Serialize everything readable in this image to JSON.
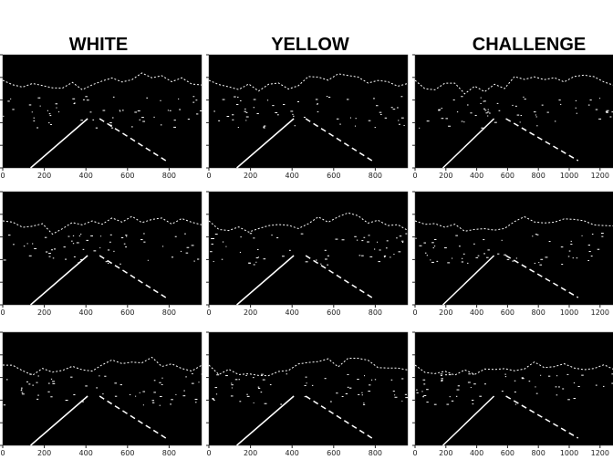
{
  "columns": [
    {
      "title": "WHITE",
      "xticks": [
        "0",
        "200",
        "400",
        "600",
        "800"
      ]
    },
    {
      "title": "YELLOW",
      "xticks": [
        "0",
        "200",
        "400",
        "600",
        "800"
      ]
    },
    {
      "title": "CHALLENGE",
      "xticks": [
        "0",
        "200",
        "400",
        "600",
        "800",
        "1000",
        "1200"
      ]
    }
  ]
}
